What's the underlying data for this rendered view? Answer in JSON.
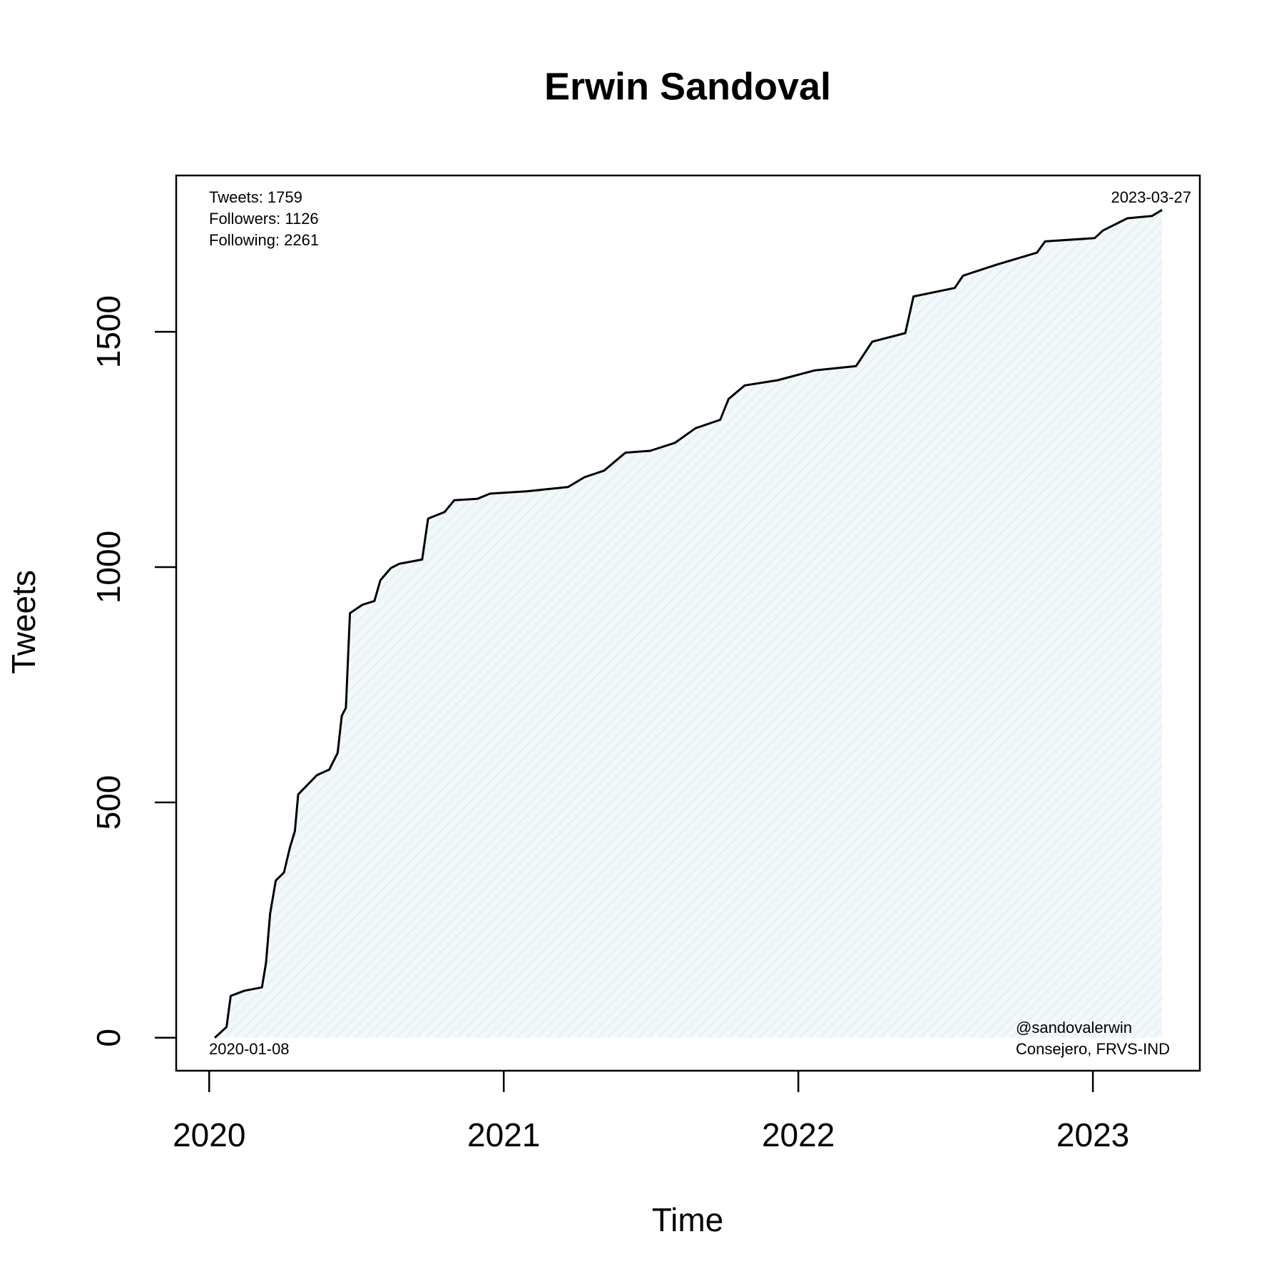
{
  "chart_data": {
    "type": "line",
    "title": "Erwin Sandoval",
    "x_label": "Time",
    "y_label": "Tweets",
    "x": [
      2020.019,
      2020.059,
      2020.073,
      2020.12,
      2020.179,
      2020.193,
      2020.207,
      2020.226,
      2020.254,
      2020.274,
      2020.291,
      2020.302,
      2020.33,
      2020.366,
      2020.408,
      2020.436,
      2020.45,
      2020.464,
      2020.478,
      2020.52,
      2020.561,
      2020.581,
      2020.617,
      2020.645,
      2020.723,
      2020.743,
      2020.799,
      2020.832,
      2020.911,
      2020.953,
      2021.078,
      2021.218,
      2021.274,
      2021.341,
      2021.413,
      2021.497,
      2021.581,
      2021.651,
      2021.735,
      2021.763,
      2021.818,
      2021.93,
      2022.056,
      2022.196,
      2022.251,
      2022.363,
      2022.391,
      2022.531,
      2022.559,
      2022.67,
      2022.81,
      2022.838,
      2023.006,
      2023.034,
      2023.117,
      2023.201,
      2023.235
    ],
    "values": [
      0,
      23,
      89,
      100,
      107,
      159,
      264,
      334,
      351,
      404,
      439,
      517,
      535,
      558,
      570,
      605,
      684,
      701,
      902,
      920,
      928,
      972,
      998,
      1007,
      1016,
      1103,
      1117,
      1142,
      1145,
      1156,
      1161,
      1170,
      1191,
      1205,
      1243,
      1247,
      1264,
      1295,
      1313,
      1357,
      1386,
      1397,
      1418,
      1427,
      1479,
      1497,
      1575,
      1593,
      1619,
      1642,
      1668,
      1692,
      1699,
      1715,
      1741,
      1746,
      1759
    ],
    "color": "#000000",
    "fill": "#e8f4f7",
    "xlim": [
      2019.888,
      2023.363
    ],
    "ylim": [
      -70,
      1832
    ],
    "xticks": [
      2020,
      2021,
      2022,
      2023
    ],
    "yticks": [
      0,
      500,
      1000,
      1500
    ],
    "annotations": [
      "Tweets: 1759",
      "Followers: 1126",
      "Following: 2261",
      "2023-03-27",
      "2020-01-08",
      "@sandovalerwin",
      "Consejero, FRVS-IND"
    ]
  }
}
